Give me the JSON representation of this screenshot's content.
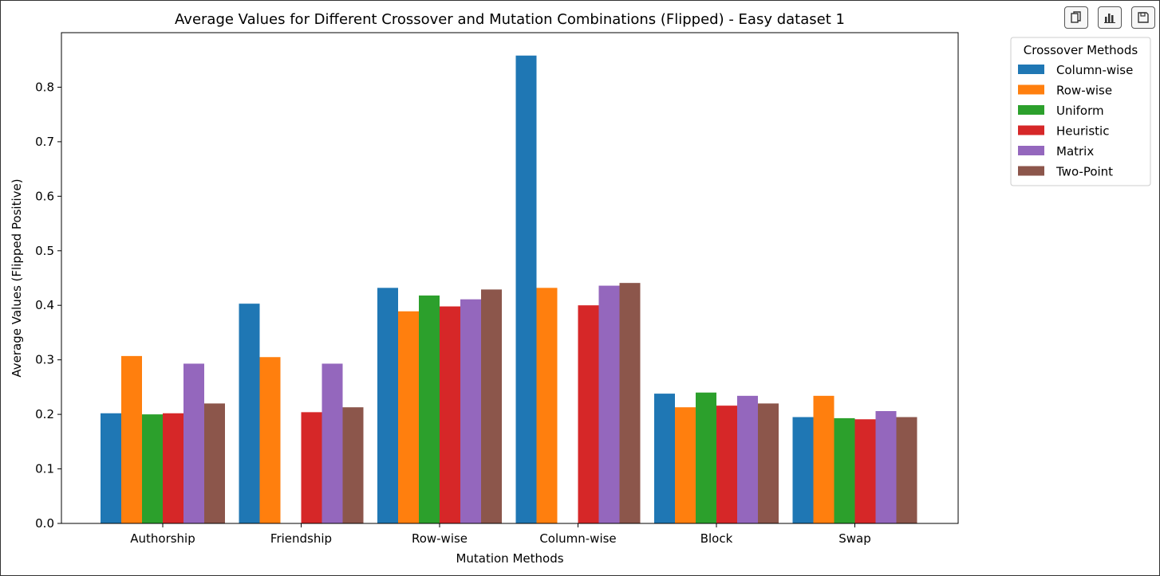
{
  "toolbar": {
    "buttons": [
      {
        "icon": "copy-icon"
      },
      {
        "icon": "bar-chart-icon"
      },
      {
        "icon": "save-icon"
      }
    ]
  },
  "chart_data": {
    "type": "bar",
    "title": "Average Values for Different Crossover and Mutation Combinations (Flipped) - Easy dataset 1",
    "xlabel": "Mutation Methods",
    "ylabel": "Average Values (Flipped Positive)",
    "ylim": [
      0,
      0.9
    ],
    "yticks": [
      0.0,
      0.1,
      0.2,
      0.3,
      0.4,
      0.5,
      0.6,
      0.7,
      0.8
    ],
    "ytick_labels": [
      "0.0",
      "0.1",
      "0.2",
      "0.3",
      "0.4",
      "0.5",
      "0.6",
      "0.7",
      "0.8"
    ],
    "grid": false,
    "legend_title": "Crossover Methods",
    "legend_position": "outside-top-right",
    "categories": [
      "Authorship",
      "Friendship",
      "Row-wise",
      "Column-wise",
      "Block",
      "Swap"
    ],
    "series": [
      {
        "name": "Column-wise",
        "color": "#1f77b4",
        "values": [
          0.202,
          0.403,
          0.432,
          0.858,
          0.238,
          0.195
        ]
      },
      {
        "name": "Row-wise",
        "color": "#ff7f0e",
        "values": [
          0.307,
          0.305,
          0.389,
          0.432,
          0.213,
          0.234
        ]
      },
      {
        "name": "Uniform",
        "color": "#2ca02c",
        "values": [
          0.2,
          0.0,
          0.418,
          0.0,
          0.24,
          0.193
        ]
      },
      {
        "name": "Heuristic",
        "color": "#d62728",
        "values": [
          0.202,
          0.204,
          0.398,
          0.4,
          0.216,
          0.191
        ]
      },
      {
        "name": "Matrix",
        "color": "#9467bd",
        "values": [
          0.293,
          0.293,
          0.411,
          0.436,
          0.234,
          0.206
        ]
      },
      {
        "name": "Two-Point",
        "color": "#8c564b",
        "values": [
          0.22,
          0.213,
          0.429,
          0.441,
          0.22,
          0.195
        ]
      }
    ]
  }
}
